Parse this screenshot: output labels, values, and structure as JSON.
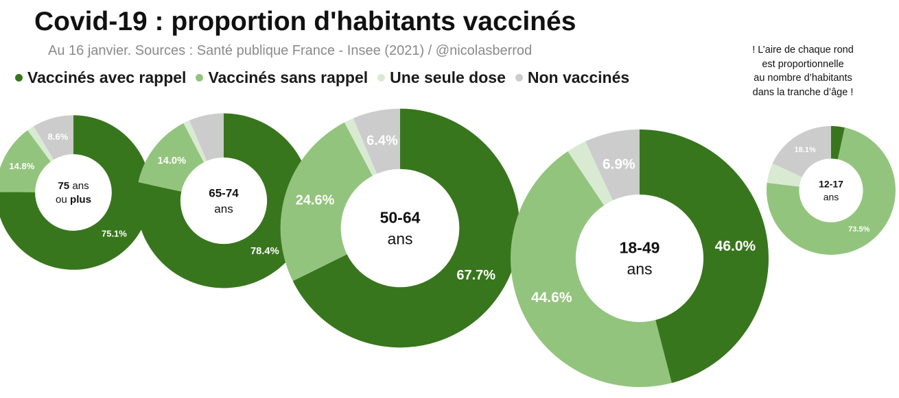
{
  "title": "Covid-19 : proportion d'habitants vaccinés",
  "subtitle": "Au 16 janvier. Sources : Santé publique France - Insee (2021) / @nicolasberrod",
  "note": [
    "! L’aire de chaque rond",
    "est proportionnelle",
    "au nombre d’habitants",
    "dans la tranche d’âge !"
  ],
  "chart_data": {
    "type": "pie",
    "variant": "donut",
    "legend": [
      {
        "label": "Vaccinés avec rappel",
        "color": "#38761d"
      },
      {
        "label": "Vaccinés sans rappel",
        "color": "#93c47d"
      },
      {
        "label": "Une seule dose",
        "color": "#d9ead3"
      },
      {
        "label": "Non vaccinés",
        "color": "#cccccc"
      }
    ],
    "groups": [
      {
        "label_lines": [
          [
            [
              "75",
              true
            ],
            [
              " ans",
              false
            ]
          ],
          [
            [
              "ou ",
              false
            ],
            [
              "plus",
              true
            ]
          ]
        ],
        "values": [
          75.1,
          14.8,
          1.5,
          8.6
        ],
        "labels": [
          "75.1%",
          "14.8%",
          "",
          "8.6%"
        ],
        "relative_population": 0.36
      },
      {
        "label_lines": [
          [
            [
              "65-74",
              true
            ]
          ],
          [
            [
              "ans",
              false
            ]
          ]
        ],
        "values": [
          78.4,
          14.0,
          1.2,
          6.4
        ],
        "labels": [
          "78.4%",
          "14.0%",
          "",
          ""
        ],
        "relative_population": 0.46
      },
      {
        "label_lines": [
          [
            [
              "50-64",
              true
            ]
          ],
          [
            [
              "ans",
              false
            ]
          ]
        ],
        "values": [
          67.7,
          24.6,
          1.3,
          6.4
        ],
        "labels": [
          "67.7%",
          "24.6%",
          "",
          "6.4%"
        ],
        "relative_population": 0.86
      },
      {
        "label_lines": [
          [
            [
              "18-49",
              true
            ]
          ],
          [
            [
              "ans",
              false
            ]
          ]
        ],
        "values": [
          46.0,
          44.6,
          2.5,
          6.9
        ],
        "labels": [
          "46.0%",
          "44.6%",
          "",
          "6.9%"
        ],
        "relative_population": 1.0
      },
      {
        "label_lines": [
          [
            [
              "12-17",
              true
            ]
          ],
          [
            [
              "ans",
              false
            ]
          ]
        ],
        "values": [
          3.4,
          73.5,
          5.0,
          18.1
        ],
        "labels": [
          "",
          "73.5%",
          "",
          "18.1%"
        ],
        "relative_population": 0.25
      }
    ]
  }
}
